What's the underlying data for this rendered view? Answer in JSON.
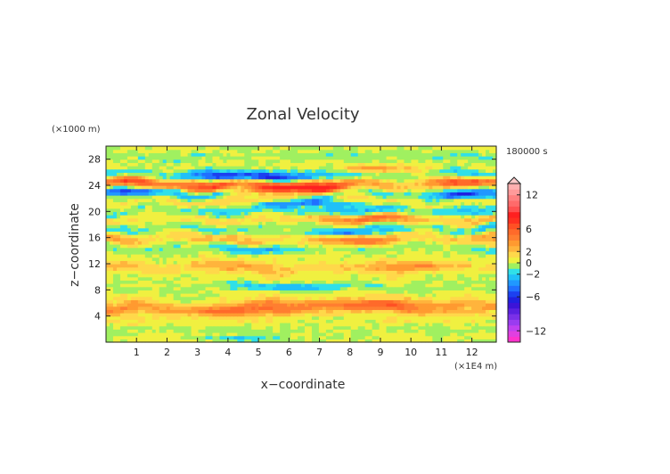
{
  "chart_data": {
    "type": "heatmap",
    "title": "Zonal Velocity",
    "xlabel": "x−coordinate",
    "ylabel": "z−coordinate",
    "x_unit": "(×1E4 m)",
    "y_unit": "(×1000 m)",
    "time_label": "180000 s",
    "xlim": [
      0,
      12.8
    ],
    "ylim": [
      0,
      30
    ],
    "x_ticks": [
      1,
      2,
      3,
      4,
      5,
      6,
      7,
      8,
      9,
      10,
      11,
      12
    ],
    "y_ticks": [
      4,
      8,
      12,
      16,
      20,
      24,
      28
    ],
    "colorbar": {
      "levels": [
        -14,
        -13,
        -12,
        -11,
        -10,
        -9,
        -8,
        -7,
        -6,
        -5,
        -4,
        -3,
        -2,
        -1,
        0,
        1,
        2,
        3,
        4,
        5,
        6,
        7,
        8,
        9,
        10,
        11,
        12,
        13,
        14
      ],
      "tick_labels": [
        "12",
        "6",
        "2",
        "0",
        "−2",
        "−6",
        "−12"
      ],
      "tick_values": [
        12,
        6,
        2,
        0,
        -2,
        -6,
        -12
      ],
      "extend": "max"
    },
    "bands": [
      {
        "z": 0.8,
        "u": 0.5
      },
      {
        "z": 2.0,
        "u": -0.5
      },
      {
        "z": 3.5,
        "u": 1.0
      },
      {
        "z": 5.5,
        "u": 3.5
      },
      {
        "z": 7.0,
        "u": 1.0
      },
      {
        "z": 8.5,
        "u": -0.5
      },
      {
        "z": 10.0,
        "u": 0.5
      },
      {
        "z": 11.5,
        "u": 2.5
      },
      {
        "z": 13.0,
        "u": 0.5
      },
      {
        "z": 14.5,
        "u": -1.0
      },
      {
        "z": 16.0,
        "u": 3.0
      },
      {
        "z": 17.5,
        "u": -2.0
      },
      {
        "z": 18.8,
        "u": 2.5
      },
      {
        "z": 20.2,
        "u": -2.5
      },
      {
        "z": 21.5,
        "u": 2.0
      },
      {
        "z": 22.8,
        "u": -3.5
      },
      {
        "z": 24.2,
        "u": 4.5
      },
      {
        "z": 25.6,
        "u": -2.5
      },
      {
        "z": 27.0,
        "u": 0.5
      },
      {
        "z": 28.5,
        "u": -1.0
      },
      {
        "z": 29.7,
        "u": 0.5
      }
    ],
    "features": [
      {
        "x": 6.0,
        "z": 23.4,
        "u": 7.0,
        "sx": 2.4,
        "sz": 1.0
      },
      {
        "x": 5.0,
        "z": 25.4,
        "u": -5.5,
        "sx": 1.8,
        "sz": 0.7
      },
      {
        "x": 6.8,
        "z": 21.3,
        "u": -5.0,
        "sx": 1.7,
        "sz": 0.6
      },
      {
        "x": 11.8,
        "z": 22.6,
        "u": -5.0,
        "sx": 1.0,
        "sz": 0.6
      },
      {
        "x": 11.5,
        "z": 24.6,
        "u": 4.5,
        "sx": 1.2,
        "sz": 0.7
      },
      {
        "x": 1.0,
        "z": 24.8,
        "u": 4.5,
        "sx": 1.0,
        "sz": 0.7
      },
      {
        "x": 0.8,
        "z": 23.1,
        "u": -4.5,
        "sx": 0.9,
        "sz": 0.5
      },
      {
        "x": 8.5,
        "z": 19.0,
        "u": 3.5,
        "sx": 1.6,
        "sz": 0.7
      },
      {
        "x": 7.8,
        "z": 16.8,
        "u": -3.0,
        "sx": 1.5,
        "sz": 0.5
      },
      {
        "x": 8.0,
        "z": 15.5,
        "u": 3.5,
        "sx": 1.5,
        "sz": 0.6
      },
      {
        "x": 10.5,
        "z": 11.8,
        "u": 3.0,
        "sx": 1.4,
        "sz": 0.7
      },
      {
        "x": 5.0,
        "z": 14.2,
        "u": -2.5,
        "sx": 1.2,
        "sz": 0.5
      },
      {
        "x": 6.0,
        "z": 8.5,
        "u": -2.5,
        "sx": 1.8,
        "sz": 0.6
      },
      {
        "x": 4.0,
        "z": 4.8,
        "u": 4.0,
        "sx": 2.0,
        "sz": 0.7
      },
      {
        "x": 7.5,
        "z": 5.8,
        "u": 3.5,
        "sx": 2.5,
        "sz": 0.8
      },
      {
        "x": 4.5,
        "z": 0.6,
        "u": -2.5,
        "sx": 1.5,
        "sz": 0.5
      },
      {
        "x": 8.8,
        "z": 26.6,
        "u": 3.0,
        "sx": 1.5,
        "sz": 0.6
      }
    ]
  }
}
